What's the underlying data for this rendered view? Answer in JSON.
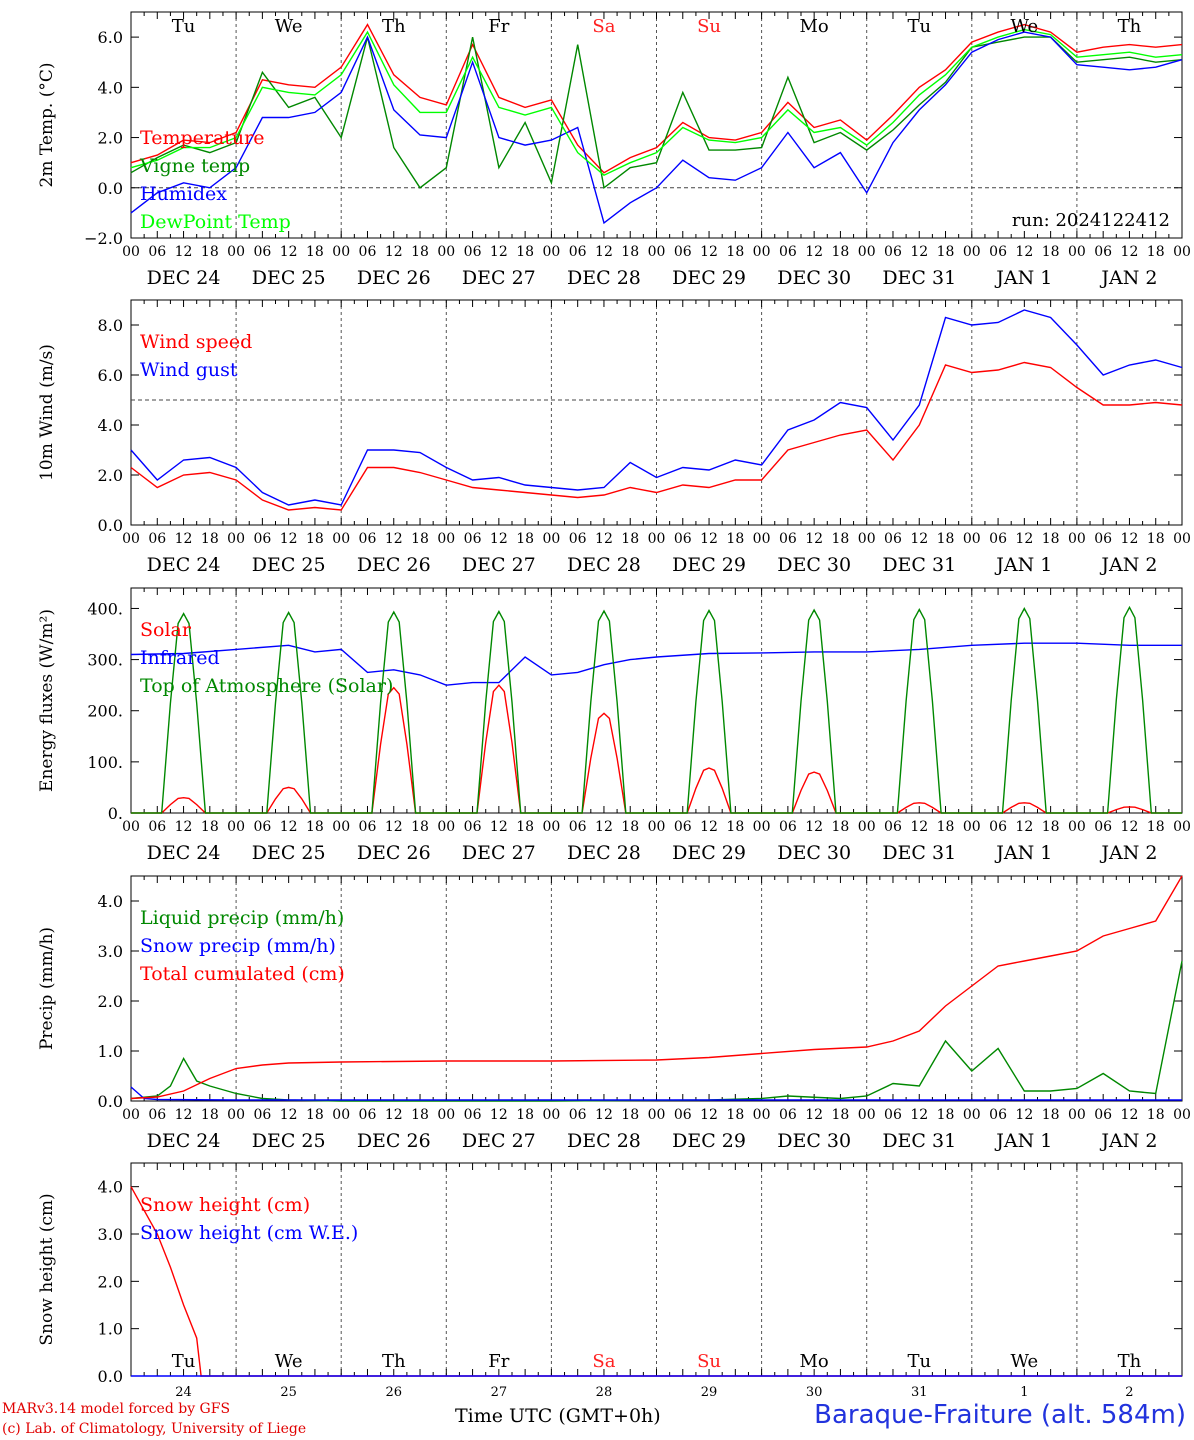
{
  "footer": {
    "credit_line1": "MARv3.14 model forced by GFS",
    "credit_line2": "(c) Lab. of Climatology, University of Liege",
    "time_axis_label": "Time UTC (GMT+0h)",
    "station": "Baraque-Fraiture (alt. 584m)"
  },
  "x_axis": {
    "hour_ticks": [
      "00",
      "06",
      "12",
      "18"
    ],
    "end_tick": "00",
    "dates": [
      "DEC 24",
      "DEC 25",
      "DEC 26",
      "DEC 27",
      "DEC 28",
      "DEC 29",
      "DEC 30",
      "DEC 31",
      "JAN  1",
      "JAN  2"
    ],
    "weekdays": [
      "Tu",
      "We",
      "Th",
      "Fr",
      "Sa",
      "Su",
      "Mo",
      "Tu",
      "We",
      "Th"
    ],
    "weekend_color": "#ff2020",
    "weekday_color": "#000000",
    "day_numbers": [
      "24",
      "25",
      "26",
      "27",
      "28",
      "29",
      "30",
      "31",
      "1",
      "2"
    ]
  },
  "chart_data": [
    {
      "type": "line",
      "ylabel": "2m Temp. (°C)",
      "ylim": [
        -2,
        7
      ],
      "yticks": [
        -2,
        0,
        2,
        4,
        6
      ],
      "ytick_labels": [
        "−2.0",
        "0.0",
        "2.0",
        "4.0",
        "6.0"
      ],
      "reference_line": 0,
      "annotation": "run: 2024122412",
      "x_unit": "hours since DEC 24 00 UTC",
      "series": [
        {
          "name": "Temperature",
          "color": "#ff0000",
          "x": [
            0,
            6,
            12,
            18,
            24,
            30,
            36,
            42,
            48,
            54,
            60,
            66,
            72,
            78,
            84,
            90,
            96,
            102,
            108,
            114,
            120,
            126,
            132,
            138,
            144,
            150,
            156,
            162,
            168,
            174,
            180,
            186,
            192,
            198,
            204,
            210,
            216,
            222,
            228,
            234,
            240
          ],
          "y": [
            1.0,
            1.3,
            1.9,
            1.8,
            2.2,
            4.3,
            4.1,
            4.0,
            4.8,
            6.5,
            4.5,
            3.6,
            3.3,
            5.7,
            3.6,
            3.2,
            3.5,
            1.7,
            0.6,
            1.2,
            1.6,
            2.6,
            2.0,
            1.9,
            2.2,
            3.4,
            2.4,
            2.7,
            1.9,
            2.9,
            4.0,
            4.7,
            5.8,
            6.2,
            6.5,
            6.2,
            5.4,
            5.6,
            5.7,
            5.6,
            5.7
          ]
        },
        {
          "name": "Vigne temp",
          "color": "#008800",
          "x": [
            0,
            6,
            12,
            18,
            24,
            30,
            36,
            42,
            48,
            54,
            60,
            66,
            72,
            78,
            84,
            90,
            96,
            102,
            108,
            114,
            120,
            126,
            132,
            138,
            144,
            150,
            156,
            162,
            168,
            174,
            180,
            186,
            192,
            198,
            204,
            210,
            216,
            222,
            228,
            234,
            240
          ],
          "y": [
            0.6,
            1.2,
            1.7,
            1.4,
            1.8,
            4.6,
            3.2,
            3.6,
            2.0,
            6.0,
            1.6,
            0.0,
            0.8,
            6.0,
            0.8,
            2.6,
            0.2,
            5.7,
            0.0,
            0.8,
            1.0,
            3.8,
            1.5,
            1.5,
            1.6,
            4.4,
            1.8,
            2.2,
            1.5,
            2.3,
            3.3,
            4.2,
            5.6,
            5.8,
            6.0,
            6.0,
            5.0,
            5.1,
            5.2,
            5.0,
            5.1
          ]
        },
        {
          "name": "Humidex",
          "color": "#0000ff",
          "x": [
            0,
            6,
            12,
            18,
            24,
            30,
            36,
            42,
            48,
            54,
            60,
            66,
            72,
            78,
            84,
            90,
            96,
            102,
            108,
            114,
            120,
            126,
            132,
            138,
            144,
            150,
            156,
            162,
            168,
            174,
            180,
            186,
            192,
            198,
            204,
            210,
            216,
            222,
            228,
            234,
            240
          ],
          "y": [
            -1.0,
            -0.2,
            0.2,
            0.0,
            0.8,
            2.8,
            2.8,
            3.0,
            3.8,
            6.0,
            3.1,
            2.1,
            2.0,
            5.0,
            2.0,
            1.7,
            1.9,
            2.4,
            -1.4,
            -0.6,
            0.0,
            1.1,
            0.4,
            0.3,
            0.8,
            2.2,
            0.8,
            1.4,
            -0.2,
            1.8,
            3.1,
            4.1,
            5.4,
            5.9,
            6.2,
            6.0,
            4.9,
            4.8,
            4.7,
            4.8,
            5.1
          ]
        },
        {
          "name": "DewPoint Temp",
          "color": "#00ff00",
          "x": [
            0,
            6,
            12,
            18,
            24,
            30,
            36,
            42,
            48,
            54,
            60,
            66,
            72,
            78,
            84,
            90,
            96,
            102,
            108,
            114,
            120,
            126,
            132,
            138,
            144,
            150,
            156,
            162,
            168,
            174,
            180,
            186,
            192,
            198,
            204,
            210,
            216,
            222,
            228,
            234,
            240
          ],
          "y": [
            0.8,
            1.1,
            1.6,
            1.6,
            2.0,
            4.0,
            3.8,
            3.7,
            4.5,
            6.2,
            4.1,
            3.0,
            3.0,
            5.2,
            3.2,
            2.9,
            3.2,
            1.4,
            0.5,
            1.0,
            1.4,
            2.4,
            1.9,
            1.8,
            2.0,
            3.1,
            2.2,
            2.4,
            1.7,
            2.6,
            3.7,
            4.5,
            5.6,
            6.0,
            6.3,
            6.1,
            5.2,
            5.3,
            5.4,
            5.2,
            5.3
          ]
        }
      ]
    },
    {
      "type": "line",
      "ylabel": "10m Wind (m/s)",
      "ylim": [
        0,
        9
      ],
      "yticks": [
        0,
        2,
        4,
        6,
        8
      ],
      "ytick_labels": [
        "0.0",
        "2.0",
        "4.0",
        "6.0",
        "8.0"
      ],
      "reference_line": 5,
      "series": [
        {
          "name": "Wind speed",
          "color": "#ff0000",
          "x": [
            0,
            6,
            12,
            18,
            24,
            30,
            36,
            42,
            48,
            54,
            60,
            66,
            72,
            78,
            84,
            90,
            96,
            102,
            108,
            114,
            120,
            126,
            132,
            138,
            144,
            150,
            156,
            162,
            168,
            174,
            180,
            186,
            192,
            198,
            204,
            210,
            216,
            222,
            228,
            234,
            240
          ],
          "y": [
            2.3,
            1.5,
            2.0,
            2.1,
            1.8,
            1.0,
            0.6,
            0.7,
            0.6,
            2.3,
            2.3,
            2.1,
            1.8,
            1.5,
            1.4,
            1.3,
            1.2,
            1.1,
            1.2,
            1.5,
            1.3,
            1.6,
            1.5,
            1.8,
            1.8,
            3.0,
            3.3,
            3.6,
            3.8,
            2.6,
            4.0,
            6.4,
            6.1,
            6.2,
            6.5,
            6.3,
            5.5,
            4.8,
            4.8,
            4.9,
            4.8
          ]
        },
        {
          "name": "Wind gust",
          "color": "#0000ff",
          "x": [
            0,
            6,
            12,
            18,
            24,
            30,
            36,
            42,
            48,
            54,
            60,
            66,
            72,
            78,
            84,
            90,
            96,
            102,
            108,
            114,
            120,
            126,
            132,
            138,
            144,
            150,
            156,
            162,
            168,
            174,
            180,
            186,
            192,
            198,
            204,
            210,
            216,
            222,
            228,
            234,
            240
          ],
          "y": [
            3.0,
            1.8,
            2.6,
            2.7,
            2.3,
            1.3,
            0.8,
            1.0,
            0.8,
            3.0,
            3.0,
            2.9,
            2.3,
            1.8,
            1.9,
            1.6,
            1.5,
            1.4,
            1.5,
            2.5,
            1.9,
            2.3,
            2.2,
            2.6,
            2.4,
            3.8,
            4.2,
            4.9,
            4.7,
            3.4,
            4.8,
            8.3,
            8.0,
            8.1,
            8.6,
            8.3,
            7.2,
            6.0,
            6.4,
            6.6,
            6.3
          ]
        }
      ]
    },
    {
      "type": "line",
      "ylabel": "Energy fluxes (W/m²)",
      "ylim": [
        0,
        440
      ],
      "yticks": [
        0,
        100,
        200,
        300,
        400
      ],
      "ytick_labels": [
        "0.",
        "100.",
        "200.",
        "300.",
        "400."
      ],
      "series": [
        {
          "name": "Solar",
          "color": "#ff0000",
          "peaks": [
            {
              "center": 12,
              "value": 30
            },
            {
              "center": 36,
              "value": 50
            },
            {
              "center": 60,
              "value": 245
            },
            {
              "center": 84,
              "value": 250
            },
            {
              "center": 108,
              "value": 195
            },
            {
              "center": 132,
              "value": 88
            },
            {
              "center": 156,
              "value": 80
            },
            {
              "center": 180,
              "value": 20
            },
            {
              "center": 204,
              "value": 20
            },
            {
              "center": 228,
              "value": 12
            }
          ]
        },
        {
          "name": "Infrared",
          "color": "#0000ff",
          "x": [
            0,
            12,
            24,
            36,
            42,
            48,
            54,
            60,
            66,
            72,
            78,
            84,
            90,
            96,
            102,
            108,
            114,
            120,
            132,
            144,
            156,
            168,
            180,
            192,
            204,
            216,
            228,
            240
          ],
          "y": [
            310,
            312,
            320,
            328,
            315,
            320,
            275,
            280,
            270,
            250,
            255,
            255,
            305,
            270,
            275,
            290,
            300,
            305,
            312,
            313,
            315,
            315,
            320,
            328,
            332,
            332,
            328,
            328
          ]
        },
        {
          "name": "Top of Atmosphere (Solar)",
          "color": "#008800",
          "peaks": [
            {
              "center": 12,
              "value": 390
            },
            {
              "center": 36,
              "value": 392
            },
            {
              "center": 60,
              "value": 393
            },
            {
              "center": 84,
              "value": 394
            },
            {
              "center": 108,
              "value": 395
            },
            {
              "center": 132,
              "value": 396
            },
            {
              "center": 156,
              "value": 397
            },
            {
              "center": 180,
              "value": 398
            },
            {
              "center": 204,
              "value": 400
            },
            {
              "center": 228,
              "value": 402
            }
          ]
        }
      ]
    },
    {
      "type": "line",
      "ylabel": "Precip (mm/h)",
      "ylim": [
        0,
        4.5
      ],
      "yticks": [
        0,
        1,
        2,
        3,
        4
      ],
      "ytick_labels": [
        "0.0",
        "1.0",
        "2.0",
        "3.0",
        "4.0"
      ],
      "series": [
        {
          "name": "Liquid precip (mm/h)",
          "color": "#008800",
          "x": [
            0,
            6,
            9,
            12,
            15,
            18,
            24,
            30,
            36,
            48,
            96,
            132,
            144,
            150,
            162,
            168,
            174,
            180,
            186,
            192,
            198,
            204,
            210,
            216,
            222,
            228,
            234,
            240
          ],
          "y": [
            0.05,
            0.1,
            0.3,
            0.85,
            0.4,
            0.3,
            0.15,
            0.05,
            0.02,
            0.0,
            0.0,
            0.02,
            0.05,
            0.1,
            0.05,
            0.1,
            0.35,
            0.3,
            1.2,
            0.6,
            1.05,
            0.2,
            0.2,
            0.25,
            0.55,
            0.2,
            0.15,
            2.8
          ]
        },
        {
          "name": "Snow precip (mm/h)",
          "color": "#0000ff",
          "x": [
            0,
            3,
            6,
            24,
            240
          ],
          "y": [
            0.28,
            0.05,
            0.03,
            0.02,
            0.02
          ]
        },
        {
          "name": "Total cumulated (cm)",
          "color": "#ff0000",
          "x": [
            0,
            6,
            12,
            18,
            24,
            30,
            36,
            48,
            72,
            96,
            120,
            132,
            144,
            156,
            168,
            174,
            180,
            186,
            192,
            198,
            204,
            210,
            216,
            222,
            228,
            234,
            240
          ],
          "y": [
            0.05,
            0.08,
            0.2,
            0.45,
            0.65,
            0.72,
            0.76,
            0.78,
            0.8,
            0.8,
            0.82,
            0.87,
            0.95,
            1.03,
            1.08,
            1.2,
            1.4,
            1.9,
            2.3,
            2.7,
            2.8,
            2.9,
            3.0,
            3.3,
            3.45,
            3.6,
            4.5
          ]
        }
      ]
    },
    {
      "type": "line",
      "ylabel": "Snow height (cm)",
      "ylim": [
        0,
        4.5
      ],
      "yticks": [
        0,
        1,
        2,
        3,
        4
      ],
      "ytick_labels": [
        "0.0",
        "1.0",
        "2.0",
        "3.0",
        "4.0"
      ],
      "series": [
        {
          "name": "Snow height (cm)",
          "color": "#ff0000",
          "x": [
            0,
            3,
            6,
            9,
            12,
            15,
            16,
            240
          ],
          "y": [
            4.0,
            3.5,
            3.0,
            2.3,
            1.5,
            0.8,
            0.0,
            0.0
          ]
        },
        {
          "name": "Snow height (cm W.E.)",
          "color": "#0000ff",
          "x": [
            0,
            240
          ],
          "y": [
            0.0,
            0.0
          ]
        }
      ]
    }
  ]
}
